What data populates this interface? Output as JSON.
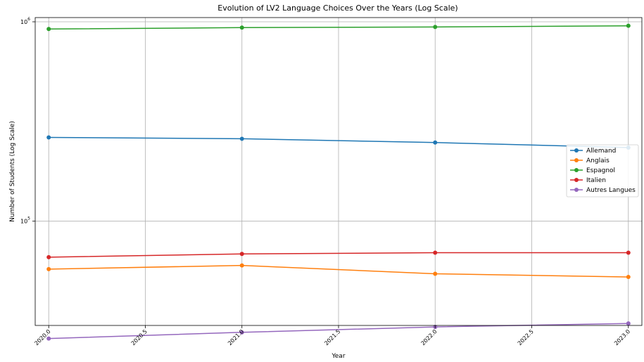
{
  "chart_data": {
    "type": "line",
    "title": "Evolution of LV2 Language Choices Over the Years (Log Scale)",
    "xlabel": "Year",
    "ylabel": "Number of Students (Log Scale)",
    "x": [
      2020,
      2021,
      2022,
      2023
    ],
    "xlim": [
      2019.93,
      2023.07
    ],
    "xticks": [
      2020.0,
      2020.5,
      2021.0,
      2021.5,
      2022.0,
      2022.5,
      2023.0
    ],
    "xtick_labels": [
      "2020.0",
      "2020.5",
      "2021.0",
      "2021.5",
      "2022.0",
      "2022.5",
      "2023.0"
    ],
    "yscale": "log",
    "ylim": [
      30000,
      1050000
    ],
    "yticks": [
      100000,
      1000000
    ],
    "ytick_labels": [
      {
        "base": "10",
        "exp": "5"
      },
      {
        "base": "10",
        "exp": "6"
      }
    ],
    "grid": true,
    "legend_position": "center-right",
    "series": [
      {
        "name": "Allemand",
        "color": "#1f77b4",
        "values": [
          263000,
          259000,
          248000,
          234000
        ]
      },
      {
        "name": "Anglais",
        "color": "#ff7f0e",
        "values": [
          57500,
          60000,
          54500,
          52500
        ]
      },
      {
        "name": "Espagnol",
        "color": "#2ca02c",
        "values": [
          920000,
          935000,
          942000,
          955000
        ]
      },
      {
        "name": "Italien",
        "color": "#d62728",
        "values": [
          66000,
          68500,
          69500,
          69500
        ]
      },
      {
        "name": "Autres Langues",
        "color": "#9467bd",
        "values": [
          25800,
          27700,
          29500,
          30700
        ]
      }
    ]
  }
}
